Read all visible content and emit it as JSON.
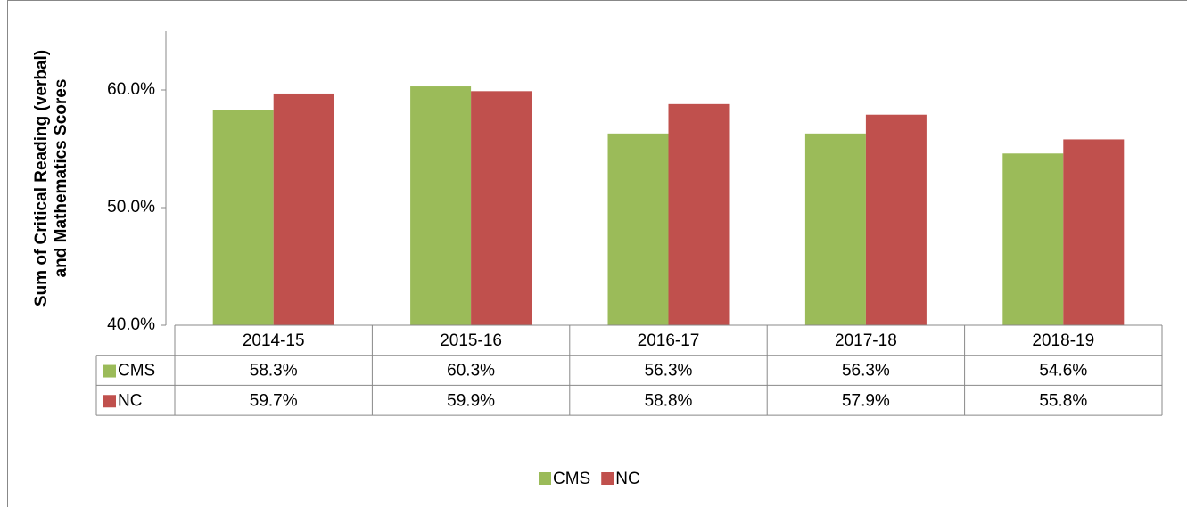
{
  "chart_data": {
    "type": "bar",
    "y_label": [
      "Sum of Critical Reading (verbal)",
      "and Mathematics Scores"
    ],
    "categories": [
      "2014-15",
      "2015-16",
      "2016-17",
      "2017-18",
      "2018-19"
    ],
    "series": [
      {
        "name": "CMS",
        "color": "#9bbb59",
        "values": [
          58.3,
          60.3,
          56.3,
          56.3,
          54.6
        ],
        "value_labels": [
          "58.3%",
          "60.3%",
          "56.3%",
          "56.3%",
          "54.6%"
        ]
      },
      {
        "name": "NC",
        "color": "#c0504d",
        "values": [
          59.7,
          59.9,
          58.8,
          57.9,
          55.8
        ],
        "value_labels": [
          "59.7%",
          "59.9%",
          "58.8%",
          "57.9%",
          "55.8%"
        ]
      }
    ],
    "ylim": [
      40,
      65
    ],
    "yticks": [
      {
        "value": 40,
        "label": "40.0%"
      },
      {
        "value": 50,
        "label": "50.0%"
      },
      {
        "value": 60,
        "label": "60.0%"
      }
    ],
    "grid": false,
    "legend": "bottom",
    "data_table": true
  }
}
